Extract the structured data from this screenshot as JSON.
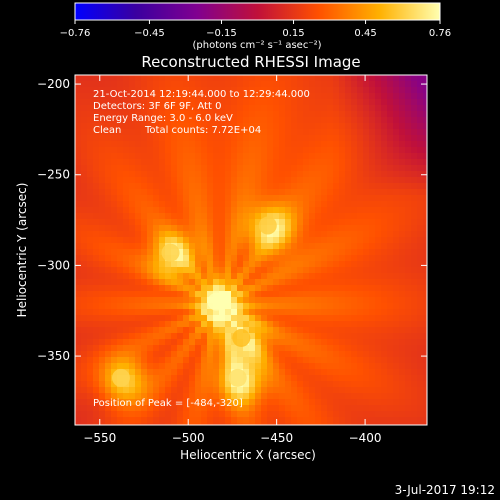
{
  "chart_data": {
    "type": "heatmap",
    "title": "Reconstructed RHESSI Image",
    "xlabel": "Heliocentric X (arcsec)",
    "ylabel": "Heliocentric Y (arcsec)",
    "xlim": [
      -564,
      -365
    ],
    "ylim": [
      -388,
      -195
    ],
    "x_ticks": [
      -550,
      -500,
      -450,
      -400
    ],
    "y_ticks": [
      -200,
      -250,
      -300,
      -350
    ],
    "x_tick_labels": [
      "−550",
      "−500",
      "−450",
      "−400"
    ],
    "y_tick_labels": [
      "−200",
      "−250",
      "−300",
      "−350"
    ],
    "colorbar": {
      "min": -0.76,
      "max": 0.76,
      "ticks": [
        -0.76,
        -0.45,
        -0.15,
        0.15,
        0.45,
        0.76
      ],
      "tick_labels": [
        "−0.76",
        "−0.45",
        "−0.15",
        "0.15",
        "0.45",
        "0.76"
      ],
      "unit_label": "(photons cm⁻² s⁻¹ asec⁻²)",
      "colormap": [
        "#0000ff",
        "#3a00a0",
        "#800090",
        "#c0103a",
        "#ff5000",
        "#ffb000",
        "#ffffb0"
      ]
    },
    "annotations": [
      "21-Oct-2014 12:19:44.000 to 12:29:44.000",
      "Detectors: 3F 6F 9F, Att 0",
      "Energy Range: 3.0 - 6.0 keV",
      "Clean",
      "Total counts: 7.72E+04"
    ],
    "peak_label": "Position of Peak = [-484,-320]",
    "sources": [
      {
        "x": -484,
        "y": -320,
        "peak": 0.76
      },
      {
        "x": -510,
        "y": -293,
        "peak": 0.62
      },
      {
        "x": -455,
        "y": -278,
        "peak": 0.6
      },
      {
        "x": -472,
        "y": -362,
        "peak": 0.66
      },
      {
        "x": -538,
        "y": -362,
        "peak": 0.62
      },
      {
        "x": -470,
        "y": -340,
        "peak": 0.55
      }
    ],
    "background_level": 0.32
  },
  "footer_date": "3-Jul-2017 19:12"
}
